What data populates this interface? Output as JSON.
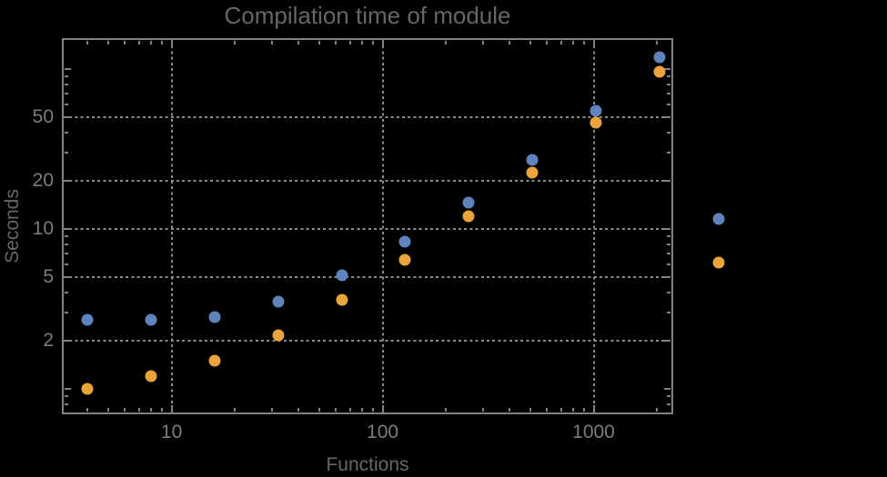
{
  "title": "Compilation time of module",
  "axes": {
    "xlabel": "Functions",
    "ylabel": "Seconds"
  },
  "colors": {
    "background": "#000000",
    "frame": "#828282",
    "gridlines": "#8a8a8a",
    "tick_labels": "#7c7c7c",
    "title_text": "#666666",
    "axis_labels": "#676767",
    "series_blue": "#5F83BC",
    "series_orange": "#E9A43B"
  },
  "chart_data": {
    "type": "scatter",
    "title": "Compilation time of module",
    "xlabel": "Functions",
    "ylabel": "Seconds",
    "x_scale": "log",
    "y_scale": "log",
    "xlim": [
      3.05,
      2360
    ],
    "ylim": [
      0.7,
      154
    ],
    "grid": "dotted gridlines at labeled major ticks only",
    "x_ticks": {
      "major": [
        10,
        100,
        1000
      ],
      "major_labels": [
        "10",
        "100",
        "1000"
      ],
      "unlabeled_major": [],
      "minor": [
        4,
        5,
        6,
        7,
        8,
        9,
        20,
        30,
        40,
        50,
        60,
        70,
        80,
        90,
        200,
        300,
        400,
        500,
        600,
        700,
        800,
        900,
        2000
      ]
    },
    "y_ticks": {
      "major": [
        2,
        5,
        10,
        20,
        50
      ],
      "major_labels": [
        "2",
        "5",
        "10",
        "20",
        "50"
      ],
      "unlabeled_major": [
        1,
        100
      ],
      "minor": [
        0.8,
        0.9,
        3,
        4,
        6,
        7,
        8,
        9,
        30,
        40,
        60,
        70,
        80,
        90
      ]
    },
    "gridlines_x": [
      10,
      100,
      1000
    ],
    "gridlines_y": [
      2,
      5,
      10,
      20,
      50
    ],
    "series": [
      {
        "name": "series-1-blue",
        "color": "#5F83BC",
        "marker": "filled-circle",
        "points": [
          [
            4,
            2.7
          ],
          [
            8,
            2.7
          ],
          [
            16,
            2.8
          ],
          [
            32,
            3.5
          ],
          [
            64,
            5.1
          ],
          [
            128,
            8.3
          ],
          [
            256,
            14.5
          ],
          [
            512,
            27
          ],
          [
            1024,
            55
          ],
          [
            2048,
            118
          ]
        ]
      },
      {
        "name": "series-2-orange",
        "color": "#E9A43B",
        "marker": "filled-circle",
        "points": [
          [
            4,
            1.0
          ],
          [
            8,
            1.2
          ],
          [
            16,
            1.5
          ],
          [
            32,
            2.15
          ],
          [
            64,
            3.6
          ],
          [
            128,
            6.4
          ],
          [
            256,
            12
          ],
          [
            512,
            22.5
          ],
          [
            1024,
            46
          ],
          [
            2048,
            96
          ]
        ]
      }
    ],
    "legend": {
      "position": "right of plot, vertically centered, markers only (no visible label text)",
      "entries": [
        {
          "label": "",
          "color": "#5F83BC"
        },
        {
          "label": "",
          "color": "#E9A43B"
        }
      ]
    }
  }
}
